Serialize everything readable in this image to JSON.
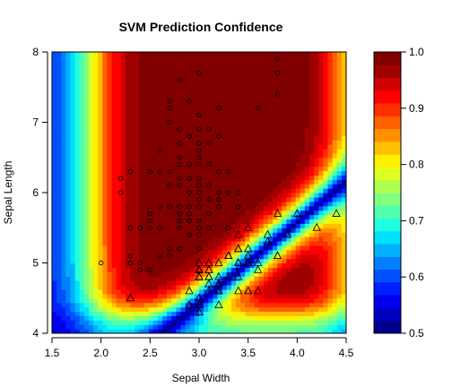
{
  "chart_data": {
    "type": "heatmap",
    "title": "SVM Prediction Confidence",
    "xlabel": "Sepal Width",
    "ylabel": "Sepal Length",
    "xlim": [
      1.5,
      4.5
    ],
    "ylim": [
      4,
      8
    ],
    "x_ticks": [
      "1.5",
      "2.0",
      "2.5",
      "3.0",
      "3.5",
      "4.0",
      "4.5"
    ],
    "y_ticks": [
      "4",
      "5",
      "6",
      "7",
      "8"
    ],
    "colorbar": {
      "range": [
        0.5,
        1.0
      ],
      "ticks": [
        "0.5",
        "0.6",
        "0.7",
        "0.8",
        "0.9",
        "1.0"
      ],
      "palette": [
        "#00008F",
        "#0000BF",
        "#0000EF",
        "#0020FF",
        "#0050FF",
        "#0080FF",
        "#00B0FF",
        "#00E0FF",
        "#20FFDF",
        "#50FFAF",
        "#80FF80",
        "#AFFF50",
        "#DFFF20",
        "#FFEF00",
        "#FFBF00",
        "#FF8F00",
        "#FF6000",
        "#FF3000",
        "#FF0000",
        "#CF0000",
        "#9F0000",
        "#800000"
      ]
    },
    "series": [
      {
        "marker": "circle",
        "x": [
          3.8,
          3.8,
          3.0,
          3.8,
          2.8,
          2.7,
          2.7,
          2.9,
          3.1,
          3.2,
          3.6,
          2.8,
          3.0,
          2.7,
          3.0,
          2.9,
          3.2,
          3.0,
          3.0,
          2.6,
          3.1,
          3.0,
          2.8,
          2.8,
          2.6,
          3.1,
          3.0,
          3.0,
          2.8,
          3.2,
          2.8,
          3.3,
          3.0,
          2.7,
          2.9,
          3.1,
          2.8,
          3.0,
          2.9,
          2.5,
          3.2,
          3.2,
          2.9,
          3.1,
          3.3,
          3.0,
          3.4,
          2.8,
          2.9,
          2.7,
          3.1,
          3.0,
          2.5,
          2.8,
          2.5,
          2.8,
          3.2,
          3.0,
          2.8,
          3.3,
          2.9,
          2.8,
          2.6,
          3.0,
          2.9,
          2.3,
          3.0,
          3.4,
          3.2,
          3.1,
          2.3,
          2.9,
          2.2,
          2.5,
          2.7,
          2.8,
          3.0,
          2.9,
          2.8,
          3.0,
          2.7,
          2.8,
          2.4,
          2.9,
          2.6,
          2.7,
          3.0,
          2.5,
          2.4,
          2.7,
          2.5,
          2.2,
          2.3,
          2.4,
          2.8,
          3.0,
          2.6,
          2.9,
          2.0,
          2.5,
          2.3,
          2.4
        ],
        "y": [
          7.7,
          7.9,
          7.7,
          7.4,
          7.6,
          7.3,
          7.2,
          7.3,
          6.9,
          7.2,
          7.2,
          6.9,
          7.1,
          7.0,
          6.9,
          6.8,
          6.8,
          6.7,
          6.7,
          6.6,
          6.7,
          6.6,
          6.7,
          6.5,
          6.3,
          6.4,
          6.5,
          6.4,
          6.4,
          6.3,
          6.2,
          6.3,
          6.2,
          6.3,
          6.4,
          6.1,
          6.1,
          6.0,
          6.2,
          6.3,
          6.0,
          5.9,
          5.8,
          5.9,
          6.0,
          6.1,
          6.0,
          5.8,
          5.7,
          5.8,
          5.7,
          5.9,
          5.7,
          5.7,
          5.6,
          5.6,
          5.8,
          5.5,
          5.7,
          5.5,
          5.6,
          5.7,
          5.5,
          5.8,
          5.6,
          6.3,
          5.5,
          5.8,
          5.9,
          5.5,
          5.5,
          5.4,
          6.2,
          5.7,
          5.8,
          5.6,
          5.4,
          5.6,
          5.2,
          5.6,
          5.1,
          5.5,
          5.5,
          6.0,
          5.8,
          5.2,
          5.2,
          6.3,
          5.5,
          6.1,
          5.5,
          6.0,
          5.0,
          4.9,
          5.2,
          4.9,
          5.1,
          5.4,
          5.0,
          4.9,
          5.1,
          5.0
        ]
      },
      {
        "marker": "triangle",
        "x": [
          2.3,
          4.0,
          4.4,
          4.2,
          3.9,
          3.8,
          3.5,
          3.8,
          3.7,
          3.6,
          3.4,
          3.4,
          3.5,
          3.8,
          3.9,
          3.3,
          3.4,
          3.1,
          3.0,
          3.4,
          3.5,
          3.4,
          3.6,
          3.2,
          3.7,
          3.4,
          3.0,
          3.5,
          3.2,
          3.2,
          3.1,
          3.3,
          3.2,
          3.0,
          3.5,
          3.1,
          3.6,
          3.0,
          3.2,
          3.4,
          3.1,
          3.0,
          2.9,
          3.0,
          3.2,
          3.5,
          3.1,
          3.3,
          3.0,
          2.9,
          3.1,
          3.2,
          3.1,
          3.0,
          3.0,
          3.2,
          3.0,
          2.9,
          2.9
        ],
        "y": [
          4.5,
          5.7,
          5.7,
          5.5,
          5.4,
          5.7,
          5.5,
          5.1,
          5.4,
          5.0,
          5.2,
          5.2,
          5.2,
          5.1,
          5.4,
          5.1,
          5.0,
          5.0,
          5.0,
          4.8,
          5.0,
          5.0,
          4.6,
          5.0,
          5.3,
          5.4,
          4.9,
          5.1,
          4.7,
          4.8,
          4.8,
          5.1,
          4.6,
          4.8,
          5.0,
          4.9,
          4.9,
          4.8,
          4.4,
          4.6,
          4.6,
          4.3,
          4.4,
          4.4,
          4.6,
          4.6,
          4.9,
          4.8,
          4.9,
          4.4,
          4.8,
          4.7,
          4.7,
          4.4,
          4.9,
          4.7,
          4.5,
          4.4,
          4.6
        ]
      }
    ]
  }
}
